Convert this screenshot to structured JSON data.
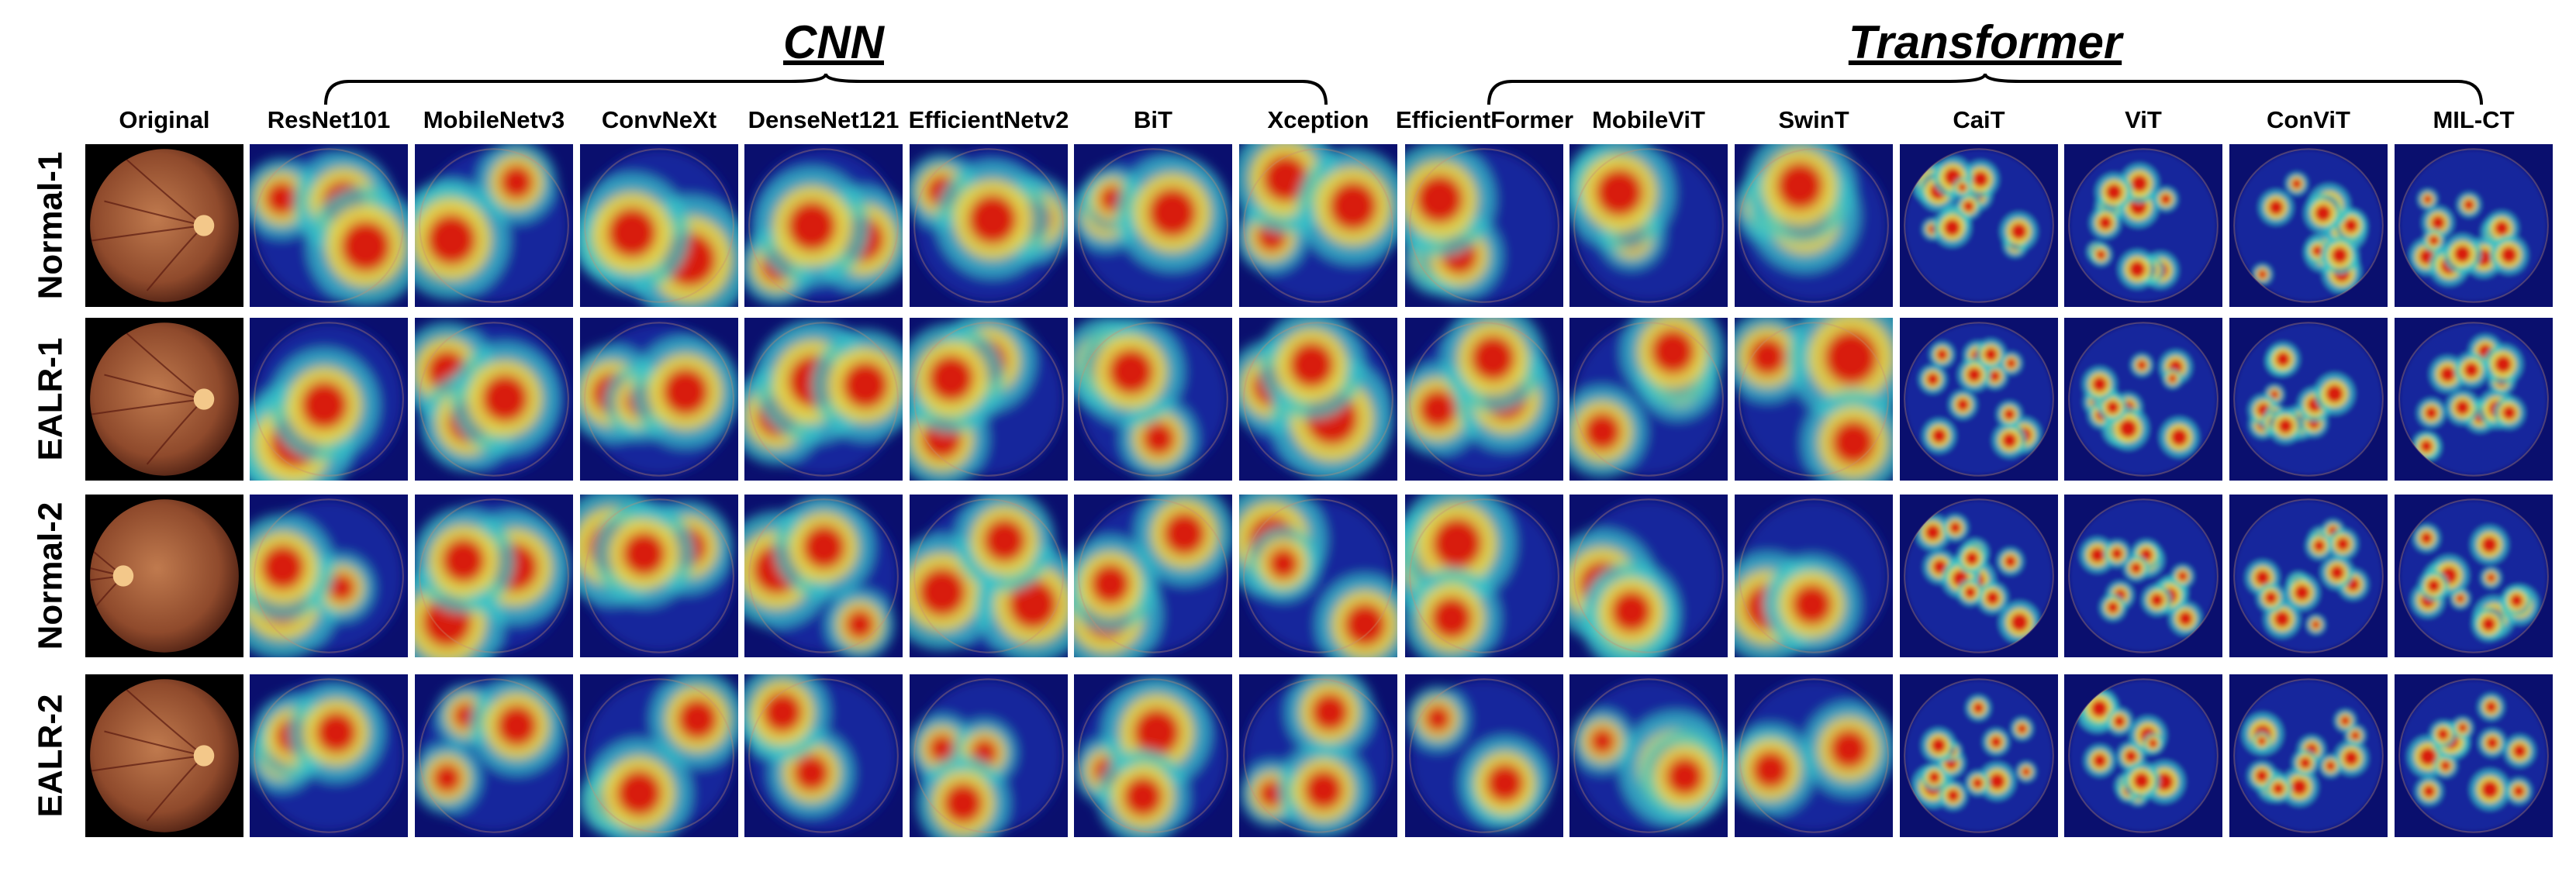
{
  "groups": {
    "cnn": "CNN",
    "transformer": "Transformer"
  },
  "columns": [
    "Original",
    "ResNet101",
    "MobileNetv3",
    "ConvNeXt",
    "DenseNet121",
    "EfficientNetv2",
    "BiT",
    "Xception",
    "EfficientFormer",
    "MobileViT",
    "SwinT",
    "CaiT",
    "ViT",
    "ConViT",
    "MIL-CT"
  ],
  "rows": [
    "Normal-1",
    "EALR-1",
    "Normal-2",
    "EALR-2"
  ],
  "colors": {
    "background_dark": "#0a0f6e",
    "hot": "#d81c10",
    "warm": "#f7d23a",
    "cool": "#38c6c8",
    "fundus": "#a95a3c"
  }
}
